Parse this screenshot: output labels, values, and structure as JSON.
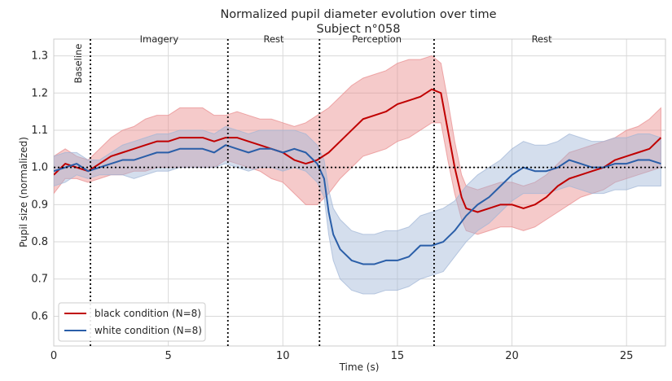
{
  "chart_data": {
    "type": "line",
    "title": "Normalized pupil diameter evolution over time",
    "subtitle": "Subject n°058",
    "xlabel": "Time (s)",
    "ylabel": "Pupil size (normalized)",
    "xlim": [
      0,
      26.7
    ],
    "ylim": [
      0.52,
      1.345
    ],
    "xticks": [
      0,
      5,
      10,
      15,
      20,
      25
    ],
    "yticks": [
      0.6,
      0.7,
      0.8,
      0.9,
      1.0,
      1.1,
      1.2,
      1.3
    ],
    "grid": true,
    "legend_position": "lower-left",
    "reference_line_y": 1.0,
    "phase_boundaries": [
      1.6,
      7.6,
      11.6,
      16.6
    ],
    "phases": [
      {
        "label": "Baseline",
        "x": 1.2,
        "orientation": "vertical"
      },
      {
        "label": "Imagery",
        "x": 4.6
      },
      {
        "label": "Rest",
        "x": 9.6
      },
      {
        "label": "Perception",
        "x": 14.1
      },
      {
        "label": "Rest",
        "x": 21.3
      }
    ],
    "series": [
      {
        "name": "black condition (N=8)",
        "color": "#c00000",
        "band_color": "#e8898a",
        "x": [
          0,
          0.5,
          1.0,
          1.5,
          2.0,
          2.5,
          3.0,
          3.5,
          4.0,
          4.5,
          5.0,
          5.5,
          6.0,
          6.5,
          7.0,
          7.5,
          8.0,
          8.5,
          9.0,
          9.5,
          10.0,
          10.5,
          11.0,
          11.5,
          12.0,
          12.5,
          13.0,
          13.5,
          14.0,
          14.5,
          15.0,
          15.5,
          16.0,
          16.5,
          16.9,
          17.2,
          17.5,
          17.8,
          18.0,
          18.5,
          19.0,
          19.5,
          20.0,
          20.5,
          21.0,
          21.5,
          22.0,
          22.5,
          23.0,
          23.5,
          24.0,
          24.5,
          25.0,
          25.5,
          26.0,
          26.5
        ],
        "mean": [
          0.98,
          1.01,
          1.0,
          0.99,
          1.01,
          1.03,
          1.04,
          1.05,
          1.06,
          1.07,
          1.07,
          1.08,
          1.08,
          1.08,
          1.07,
          1.08,
          1.08,
          1.07,
          1.06,
          1.05,
          1.04,
          1.02,
          1.01,
          1.02,
          1.04,
          1.07,
          1.1,
          1.13,
          1.14,
          1.15,
          1.17,
          1.18,
          1.19,
          1.21,
          1.2,
          1.1,
          1.0,
          0.92,
          0.89,
          0.88,
          0.89,
          0.9,
          0.9,
          0.89,
          0.9,
          0.92,
          0.95,
          0.97,
          0.98,
          0.99,
          1.0,
          1.02,
          1.03,
          1.04,
          1.05,
          1.08
        ],
        "lower": [
          0.93,
          0.97,
          0.97,
          0.96,
          0.97,
          0.98,
          0.98,
          0.99,
          0.99,
          1.0,
          1.0,
          1.0,
          1.0,
          1.0,
          1.0,
          1.02,
          1.01,
          1.0,
          0.99,
          0.97,
          0.96,
          0.93,
          0.9,
          0.9,
          0.93,
          0.97,
          1.0,
          1.03,
          1.04,
          1.05,
          1.07,
          1.08,
          1.1,
          1.12,
          1.12,
          1.02,
          0.93,
          0.86,
          0.83,
          0.82,
          0.83,
          0.84,
          0.84,
          0.83,
          0.84,
          0.86,
          0.88,
          0.9,
          0.92,
          0.93,
          0.94,
          0.96,
          0.97,
          0.98,
          0.99,
          1.0
        ],
        "upper": [
          1.03,
          1.05,
          1.03,
          1.02,
          1.05,
          1.08,
          1.1,
          1.11,
          1.13,
          1.14,
          1.14,
          1.16,
          1.16,
          1.16,
          1.14,
          1.14,
          1.15,
          1.14,
          1.13,
          1.13,
          1.12,
          1.11,
          1.12,
          1.14,
          1.16,
          1.19,
          1.22,
          1.24,
          1.25,
          1.26,
          1.28,
          1.29,
          1.29,
          1.3,
          1.28,
          1.18,
          1.07,
          0.98,
          0.95,
          0.94,
          0.95,
          0.96,
          0.96,
          0.95,
          0.96,
          0.98,
          1.01,
          1.04,
          1.05,
          1.06,
          1.07,
          1.08,
          1.1,
          1.11,
          1.13,
          1.16
        ]
      },
      {
        "name": "white condition (N=8)",
        "color": "#2a5ea8",
        "band_color": "#9fb5d6",
        "x": [
          0,
          0.5,
          1.0,
          1.5,
          2.0,
          2.5,
          3.0,
          3.5,
          4.0,
          4.5,
          5.0,
          5.5,
          6.0,
          6.5,
          7.0,
          7.5,
          8.0,
          8.5,
          9.0,
          9.5,
          10.0,
          10.5,
          11.0,
          11.5,
          11.8,
          12.0,
          12.2,
          12.5,
          13.0,
          13.5,
          14.0,
          14.5,
          15.0,
          15.5,
          16.0,
          16.5,
          17.0,
          17.5,
          18.0,
          18.5,
          19.0,
          19.5,
          20.0,
          20.5,
          21.0,
          21.5,
          22.0,
          22.5,
          23.0,
          23.5,
          24.0,
          24.5,
          25.0,
          25.5,
          26.0,
          26.5
        ],
        "mean": [
          0.99,
          1.0,
          1.01,
          0.99,
          1.0,
          1.01,
          1.02,
          1.02,
          1.03,
          1.04,
          1.04,
          1.05,
          1.05,
          1.05,
          1.04,
          1.06,
          1.05,
          1.04,
          1.05,
          1.05,
          1.04,
          1.05,
          1.04,
          1.01,
          0.97,
          0.88,
          0.82,
          0.78,
          0.75,
          0.74,
          0.74,
          0.75,
          0.75,
          0.76,
          0.79,
          0.79,
          0.8,
          0.83,
          0.87,
          0.9,
          0.92,
          0.95,
          0.98,
          1.0,
          0.99,
          0.99,
          1.0,
          1.02,
          1.01,
          1.0,
          1.0,
          1.01,
          1.01,
          1.02,
          1.02,
          1.01
        ],
        "lower": [
          0.95,
          0.96,
          0.98,
          0.97,
          0.98,
          0.98,
          0.98,
          0.97,
          0.98,
          0.99,
          0.99,
          1.0,
          1.0,
          1.0,
          1.0,
          1.01,
          1.0,
          0.99,
          1.0,
          1.0,
          0.99,
          1.0,
          0.99,
          0.96,
          0.92,
          0.82,
          0.75,
          0.7,
          0.67,
          0.66,
          0.66,
          0.67,
          0.67,
          0.68,
          0.7,
          0.71,
          0.72,
          0.76,
          0.8,
          0.83,
          0.85,
          0.88,
          0.91,
          0.93,
          0.93,
          0.93,
          0.94,
          0.95,
          0.94,
          0.93,
          0.93,
          0.94,
          0.94,
          0.95,
          0.95,
          0.95
        ],
        "upper": [
          1.03,
          1.04,
          1.04,
          1.02,
          1.02,
          1.04,
          1.06,
          1.07,
          1.08,
          1.09,
          1.09,
          1.1,
          1.1,
          1.1,
          1.09,
          1.11,
          1.1,
          1.09,
          1.1,
          1.1,
          1.1,
          1.1,
          1.09,
          1.06,
          1.02,
          0.94,
          0.89,
          0.86,
          0.83,
          0.82,
          0.82,
          0.83,
          0.83,
          0.84,
          0.87,
          0.88,
          0.89,
          0.91,
          0.95,
          0.98,
          1.0,
          1.02,
          1.05,
          1.07,
          1.06,
          1.06,
          1.07,
          1.09,
          1.08,
          1.07,
          1.07,
          1.08,
          1.08,
          1.09,
          1.09,
          1.08
        ]
      }
    ]
  }
}
